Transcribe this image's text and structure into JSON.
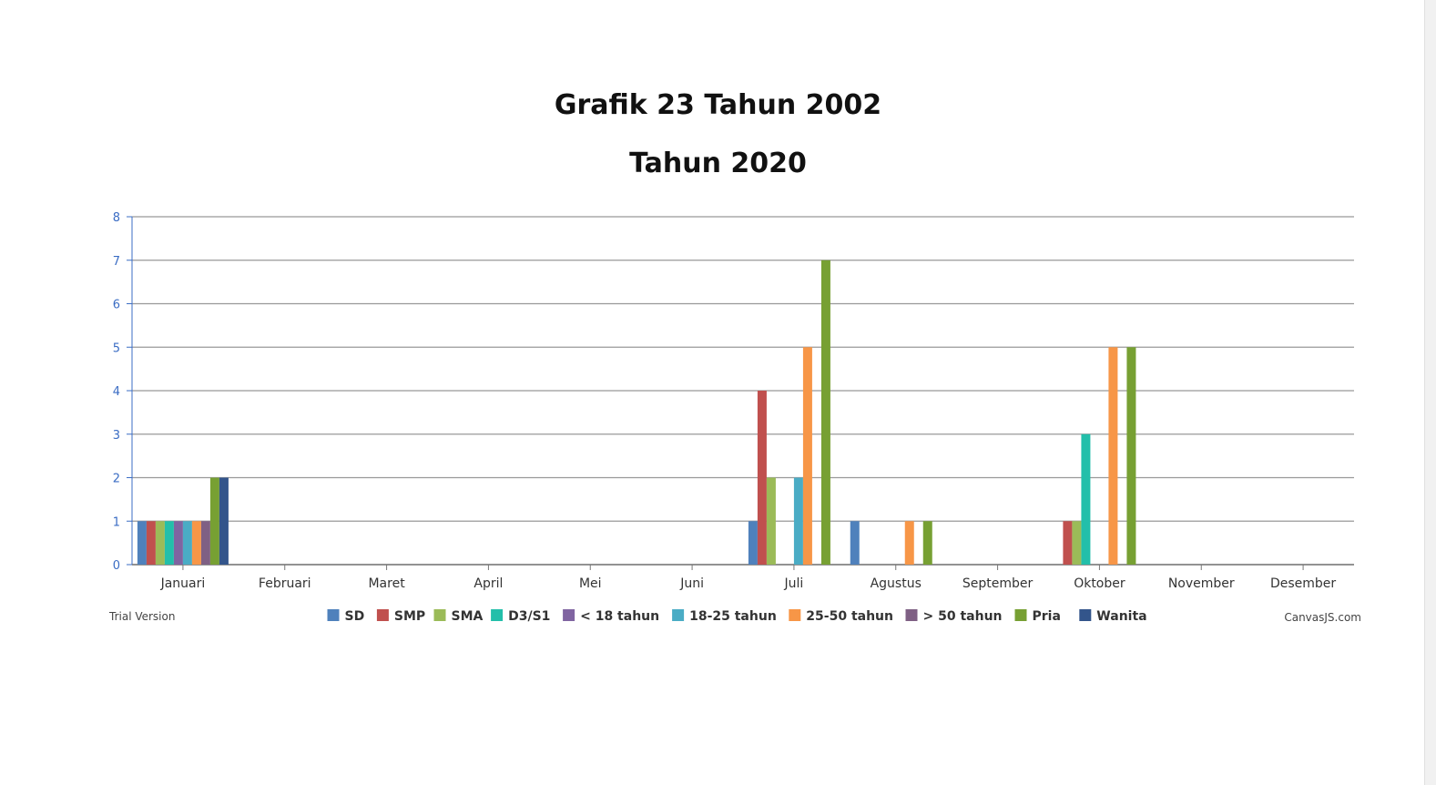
{
  "chart_data": {
    "type": "bar",
    "title": "Grafik 23 Tahun 2002",
    "subtitle": "Tahun 2020",
    "categories": [
      "Januari",
      "Februari",
      "Maret",
      "April",
      "Mei",
      "Juni",
      "Juli",
      "Agustus",
      "September",
      "Oktober",
      "November",
      "Desember"
    ],
    "ylim": [
      0,
      8
    ],
    "yticks": [
      0,
      1,
      2,
      3,
      4,
      5,
      6,
      7,
      8
    ],
    "grid": true,
    "legend_position": "bottom",
    "series": [
      {
        "name": "SD",
        "color": "#4f81bc",
        "values": [
          1,
          0,
          0,
          0,
          0,
          0,
          1,
          1,
          0,
          0,
          0,
          0
        ]
      },
      {
        "name": "SMP",
        "color": "#c0504e",
        "values": [
          1,
          0,
          0,
          0,
          0,
          0,
          4,
          0,
          0,
          1,
          0,
          0
        ]
      },
      {
        "name": "SMA",
        "color": "#9bbb58",
        "values": [
          1,
          0,
          0,
          0,
          0,
          0,
          2,
          0,
          0,
          1,
          0,
          0
        ]
      },
      {
        "name": "D3/S1",
        "color": "#23bfaa",
        "values": [
          1,
          0,
          0,
          0,
          0,
          0,
          0,
          0,
          0,
          3,
          0,
          0
        ]
      },
      {
        "name": "< 18 tahun",
        "color": "#8064a1",
        "values": [
          1,
          0,
          0,
          0,
          0,
          0,
          0,
          0,
          0,
          0,
          0,
          0
        ]
      },
      {
        "name": "18-25 tahun",
        "color": "#4aacc5",
        "values": [
          1,
          0,
          0,
          0,
          0,
          0,
          2,
          0,
          0,
          0,
          0,
          0
        ]
      },
      {
        "name": "25-50 tahun",
        "color": "#f79647",
        "values": [
          1,
          0,
          0,
          0,
          0,
          0,
          5,
          1,
          0,
          5,
          0,
          0
        ]
      },
      {
        "name": "> 50 tahun",
        "color": "#7f6084",
        "values": [
          1,
          0,
          0,
          0,
          0,
          0,
          0,
          0,
          0,
          0,
          0,
          0
        ]
      },
      {
        "name": "Pria",
        "color": "#77a033",
        "values": [
          2,
          0,
          0,
          0,
          0,
          0,
          7,
          1,
          0,
          5,
          0,
          0
        ]
      },
      {
        "name": "Wanita",
        "color": "#33558b",
        "values": [
          2,
          0,
          0,
          0,
          0,
          0,
          0,
          0,
          0,
          0,
          0,
          0
        ]
      }
    ]
  },
  "footer": {
    "trial": "Trial Version",
    "credit": "CanvasJS.com"
  }
}
